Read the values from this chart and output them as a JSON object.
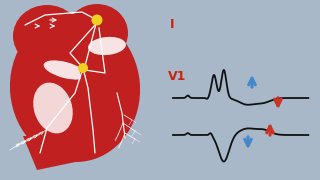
{
  "bg_color": "#a8b8c8",
  "heart_color": "#c02020",
  "lead_I_label": "I",
  "lead_V1_label": "V1",
  "label_color": "#cc2211",
  "arrow_blue": "#4488cc",
  "arrow_red": "#cc3322",
  "ecg_color": "#111111",
  "ecg_lw": 1.3,
  "node_color": "#f0d020",
  "white": "#ffffff",
  "conduction_lw": 0.9
}
